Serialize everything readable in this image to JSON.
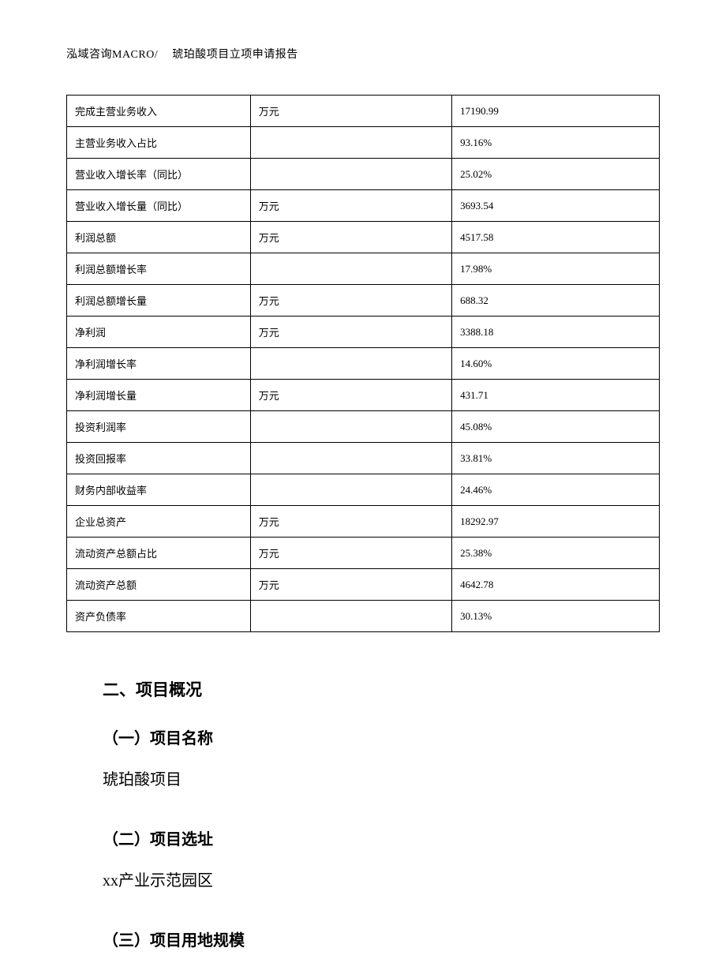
{
  "header": {
    "left": "泓域咨询MACRO/",
    "right": "琥珀酸项目立项申请报告"
  },
  "table": {
    "columns": [
      "item",
      "unit",
      "value"
    ],
    "border_color": "#000000",
    "font_size": 13,
    "rows": [
      {
        "item": "完成主营业务收入",
        "unit": "万元",
        "value": "17190.99"
      },
      {
        "item": "主营业务收入占比",
        "unit": "",
        "value": "93.16%"
      },
      {
        "item": "营业收入增长率（同比）",
        "unit": "",
        "value": "25.02%"
      },
      {
        "item": "营业收入增长量（同比）",
        "unit": "万元",
        "value": "3693.54"
      },
      {
        "item": "利润总额",
        "unit": "万元",
        "value": "4517.58"
      },
      {
        "item": "利润总额增长率",
        "unit": "",
        "value": "17.98%"
      },
      {
        "item": "利润总额增长量",
        "unit": "万元",
        "value": "688.32"
      },
      {
        "item": "净利润",
        "unit": "万元",
        "value": "3388.18"
      },
      {
        "item": "净利润增长率",
        "unit": "",
        "value": "14.60%"
      },
      {
        "item": "净利润增长量",
        "unit": "万元",
        "value": "431.71"
      },
      {
        "item": "投资利润率",
        "unit": "",
        "value": "45.08%"
      },
      {
        "item": "投资回报率",
        "unit": "",
        "value": "33.81%"
      },
      {
        "item": "财务内部收益率",
        "unit": "",
        "value": "24.46%"
      },
      {
        "item": "企业总资产",
        "unit": "万元",
        "value": "18292.97"
      },
      {
        "item": "流动资产总额占比",
        "unit": "万元",
        "value": "25.38%"
      },
      {
        "item": "流动资产总额",
        "unit": "万元",
        "value": "4642.78"
      },
      {
        "item": "资产负债率",
        "unit": "",
        "value": "30.13%"
      }
    ]
  },
  "content": {
    "section_title": "二、项目概况",
    "sub1_title": "（一）项目名称",
    "sub1_body": "琥珀酸项目",
    "sub2_title": "（二）项目选址",
    "sub2_body": "xx产业示范园区",
    "sub3_title": "（三）项目用地规模"
  }
}
